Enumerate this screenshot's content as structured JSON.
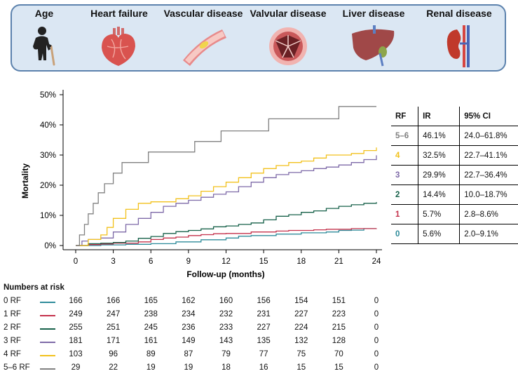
{
  "banner": {
    "items": [
      {
        "label": "Age",
        "icon": "elderly-person-icon"
      },
      {
        "label": "Heart failure",
        "icon": "heart-icon"
      },
      {
        "label": "Vascular disease",
        "icon": "artery-plaque-icon"
      },
      {
        "label": "Valvular disease",
        "icon": "heart-valve-icon"
      },
      {
        "label": "Liver disease",
        "icon": "liver-icon"
      },
      {
        "label": "Renal disease",
        "icon": "kidney-icon"
      }
    ]
  },
  "chart_data": {
    "type": "line",
    "step": true,
    "title": "",
    "xlabel": "Follow-up (months)",
    "ylabel": "Mortality",
    "xlim": [
      0,
      24
    ],
    "ylim": [
      0,
      50
    ],
    "xticks": [
      "0",
      "3",
      "6",
      "9",
      "12",
      "15",
      "18",
      "21",
      "24"
    ],
    "yticks": [
      "0%",
      "10%",
      "20%",
      "30%",
      "40%",
      "50%"
    ],
    "grid": false,
    "series": [
      {
        "name": "0 RF",
        "color": "#2e8b9a",
        "points": [
          [
            0,
            0
          ],
          [
            2,
            0.2
          ],
          [
            4,
            0.4
          ],
          [
            6,
            0.6
          ],
          [
            8,
            1.2
          ],
          [
            10,
            1.9
          ],
          [
            12,
            2.5
          ],
          [
            13,
            3.1
          ],
          [
            14,
            3.3
          ],
          [
            16,
            3.8
          ],
          [
            18,
            4.2
          ],
          [
            20,
            4.5
          ],
          [
            21,
            5.0
          ],
          [
            22,
            5.1
          ],
          [
            23,
            5.6
          ],
          [
            24,
            5.6
          ]
        ]
      },
      {
        "name": "1 RF",
        "color": "#c4314b",
        "points": [
          [
            0,
            0
          ],
          [
            1,
            0.3
          ],
          [
            2,
            0.5
          ],
          [
            3,
            0.8
          ],
          [
            5,
            1.2
          ],
          [
            6,
            2.0
          ],
          [
            7,
            2.5
          ],
          [
            8,
            2.8
          ],
          [
            9,
            3.3
          ],
          [
            10,
            3.6
          ],
          [
            11,
            3.9
          ],
          [
            12,
            4.0
          ],
          [
            14,
            4.5
          ],
          [
            16,
            4.8
          ],
          [
            17,
            5.0
          ],
          [
            19,
            5.2
          ],
          [
            20,
            5.4
          ],
          [
            22,
            5.6
          ],
          [
            24,
            5.7
          ]
        ]
      },
      {
        "name": "2 RF",
        "color": "#17614a",
        "points": [
          [
            0,
            0
          ],
          [
            1,
            0.6
          ],
          [
            2,
            0.8
          ],
          [
            3,
            1.0
          ],
          [
            4,
            1.5
          ],
          [
            5,
            2.4
          ],
          [
            6,
            3.0
          ],
          [
            7,
            4.0
          ],
          [
            8,
            4.6
          ],
          [
            9,
            5.0
          ],
          [
            10,
            5.5
          ],
          [
            11,
            6.2
          ],
          [
            12,
            6.5
          ],
          [
            13,
            7.0
          ],
          [
            14,
            7.5
          ],
          [
            15,
            8.5
          ],
          [
            16,
            9.7
          ],
          [
            17,
            10.2
          ],
          [
            18,
            11.0
          ],
          [
            19,
            11.5
          ],
          [
            20,
            12.3
          ],
          [
            21,
            13.0
          ],
          [
            22,
            13.5
          ],
          [
            23,
            14.0
          ],
          [
            24,
            14.4
          ]
        ]
      },
      {
        "name": "3 RF",
        "color": "#7e6aa8",
        "points": [
          [
            0,
            0
          ],
          [
            0.5,
            1.5
          ],
          [
            1,
            2.0
          ],
          [
            2,
            2.5
          ],
          [
            3,
            4.5
          ],
          [
            4,
            7.0
          ],
          [
            5,
            9.0
          ],
          [
            6,
            11.0
          ],
          [
            7,
            13.0
          ],
          [
            8,
            14.0
          ],
          [
            9,
            15.0
          ],
          [
            10,
            16.0
          ],
          [
            11,
            17.0
          ],
          [
            12,
            17.8
          ],
          [
            13,
            19.5
          ],
          [
            14,
            21.0
          ],
          [
            15,
            22.5
          ],
          [
            16,
            23.5
          ],
          [
            17,
            24.2
          ],
          [
            18,
            24.8
          ],
          [
            19,
            25.5
          ],
          [
            20,
            26.0
          ],
          [
            21,
            26.7
          ],
          [
            22,
            27.5
          ],
          [
            23,
            28.5
          ],
          [
            24,
            29.9
          ]
        ]
      },
      {
        "name": "4 RF",
        "color": "#f2c11c",
        "points": [
          [
            0,
            0
          ],
          [
            1,
            2.0
          ],
          [
            2,
            3.5
          ],
          [
            2.5,
            6.0
          ],
          [
            3,
            9.0
          ],
          [
            4,
            12.0
          ],
          [
            5,
            14.0
          ],
          [
            6,
            14.5
          ],
          [
            8,
            15.5
          ],
          [
            9,
            16.5
          ],
          [
            10,
            18.0
          ],
          [
            11,
            19.5
          ],
          [
            12,
            21.0
          ],
          [
            13,
            22.5
          ],
          [
            14,
            24.0
          ],
          [
            15,
            25.5
          ],
          [
            16,
            26.5
          ],
          [
            17,
            27.5
          ],
          [
            18,
            28.0
          ],
          [
            19,
            29.0
          ],
          [
            20,
            30.0
          ],
          [
            22,
            30.5
          ],
          [
            23,
            31.5
          ],
          [
            24,
            32.5
          ]
        ]
      },
      {
        "name": "5–6 RF",
        "color": "#808080",
        "points": [
          [
            0,
            0
          ],
          [
            0.3,
            3.5
          ],
          [
            0.7,
            7.0
          ],
          [
            1,
            10.5
          ],
          [
            1.4,
            14.0
          ],
          [
            1.8,
            17.5
          ],
          [
            2.3,
            20.5
          ],
          [
            3,
            24.0
          ],
          [
            3.7,
            27.5
          ],
          [
            5.8,
            31.0
          ],
          [
            9.5,
            34.5
          ],
          [
            11.6,
            38.0
          ],
          [
            15.4,
            42.0
          ],
          [
            21,
            46.1
          ],
          [
            24,
            46.1
          ]
        ]
      }
    ]
  },
  "table": {
    "headers": [
      "RF",
      "IR",
      "95% CI"
    ],
    "rows": [
      {
        "rf": "5–6",
        "ir": "46.1%",
        "ci": "24.0–61.8%",
        "color": "#808080"
      },
      {
        "rf": "4",
        "ir": "32.5%",
        "ci": "22.7–41.1%",
        "color": "#f2c11c"
      },
      {
        "rf": "3",
        "ir": "29.9%",
        "ci": "22.7–36.4%",
        "color": "#7e6aa8"
      },
      {
        "rf": "2",
        "ir": "14.4%",
        "ci": "10.0–18.7%",
        "color": "#17614a"
      },
      {
        "rf": "1",
        "ir": "5.7%",
        "ci": "2.8–8.6%",
        "color": "#c4314b"
      },
      {
        "rf": "0",
        "ir": "5.6%",
        "ci": "2.0–9.1%",
        "color": "#2e8b9a"
      }
    ]
  },
  "risk": {
    "title": "Numbers at risk",
    "rows": [
      {
        "label": "0 RF",
        "color": "#2e8b9a",
        "values": [
          "166",
          "166",
          "165",
          "162",
          "160",
          "156",
          "154",
          "151",
          "0"
        ]
      },
      {
        "label": "1 RF",
        "color": "#c4314b",
        "values": [
          "249",
          "247",
          "238",
          "234",
          "232",
          "231",
          "227",
          "223",
          "0"
        ]
      },
      {
        "label": "2 RF",
        "color": "#17614a",
        "values": [
          "255",
          "251",
          "245",
          "236",
          "233",
          "227",
          "224",
          "215",
          "0"
        ]
      },
      {
        "label": "3 RF",
        "color": "#7e6aa8",
        "values": [
          "181",
          "171",
          "161",
          "149",
          "143",
          "135",
          "132",
          "128",
          "0"
        ]
      },
      {
        "label": "4 RF",
        "color": "#f2c11c",
        "values": [
          "103",
          "96",
          "89",
          "87",
          "79",
          "77",
          "75",
          "70",
          "0"
        ]
      },
      {
        "label": "5–6 RF",
        "color": "#808080",
        "values": [
          "29",
          "22",
          "19",
          "19",
          "18",
          "16",
          "15",
          "15",
          "0"
        ]
      }
    ]
  }
}
